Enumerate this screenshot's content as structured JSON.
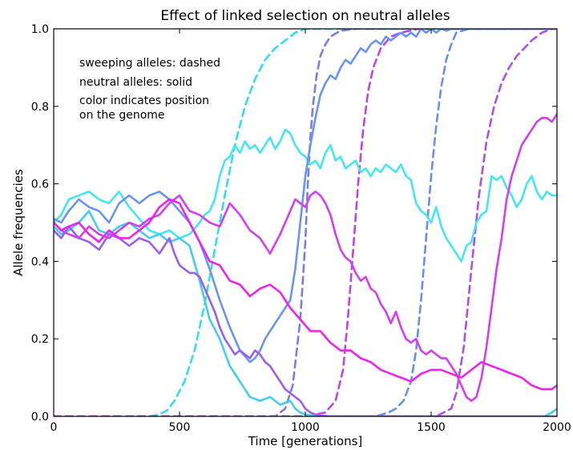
{
  "chart_data": {
    "type": "line",
    "title": "Effect of linked selection on neutral alleles",
    "xlabel": "Time [generations]",
    "ylabel": "Allele frequencies",
    "xlim": [
      0,
      2000
    ],
    "ylim": [
      0,
      1.0
    ],
    "xticks": [
      "0",
      "500",
      "1000",
      "1500",
      "2000"
    ],
    "yticks": [
      "0.0",
      "0.2",
      "0.4",
      "0.6",
      "0.8",
      "1.0"
    ],
    "grid": false,
    "annotations": [
      "sweeping alleles: dashed",
      "neutral alleles: solid",
      "color indicates position",
      "on the genome"
    ],
    "series": [
      {
        "style": "dashed",
        "color": "#33ddee",
        "x": [
          0,
          380,
          420,
          450,
          480,
          520,
          560,
          600,
          640,
          680,
          720,
          760,
          800,
          840,
          880,
          920,
          960,
          1000,
          1100,
          2000
        ],
        "y": [
          0,
          0,
          0.005,
          0.015,
          0.04,
          0.09,
          0.17,
          0.29,
          0.43,
          0.57,
          0.7,
          0.8,
          0.87,
          0.92,
          0.95,
          0.97,
          0.99,
          1.0,
          1.0,
          1.0
        ]
      },
      {
        "style": "dashed",
        "color": "#6a8df0",
        "x": [
          0,
          1280,
          1330,
          1360,
          1390,
          1420,
          1440,
          1460,
          1480,
          1500,
          1520,
          1540,
          1560,
          1580,
          1600,
          1650,
          2000
        ],
        "y": [
          0,
          0,
          0.01,
          0.02,
          0.04,
          0.09,
          0.17,
          0.3,
          0.46,
          0.62,
          0.75,
          0.85,
          0.92,
          0.96,
          0.99,
          1.0,
          1.0
        ]
      },
      {
        "style": "dashed",
        "color": "#7a7de8",
        "x": [
          0,
          880,
          920,
          950,
          980,
          1000,
          1010,
          1020,
          1030,
          1045,
          1060,
          1080,
          1100,
          1140,
          1200,
          2000
        ],
        "y": [
          0,
          0,
          0.02,
          0.08,
          0.25,
          0.45,
          0.6,
          0.72,
          0.8,
          0.88,
          0.93,
          0.96,
          0.98,
          0.995,
          1.0,
          1.0
        ]
      },
      {
        "style": "dashed",
        "color": "#bb44f0",
        "x": [
          0,
          1000,
          1080,
          1120,
          1150,
          1170,
          1190,
          1210,
          1230,
          1250,
          1270,
          1300,
          1340,
          1380,
          1450,
          2000
        ],
        "y": [
          0,
          0,
          0.01,
          0.04,
          0.12,
          0.26,
          0.43,
          0.6,
          0.74,
          0.84,
          0.9,
          0.95,
          0.98,
          0.99,
          1.0,
          1.0
        ]
      },
      {
        "style": "dashed",
        "color": "#b14df0",
        "x": [
          0,
          1520,
          1580,
          1600,
          1630,
          1660,
          1690,
          1720,
          1750,
          1780,
          1810,
          1840,
          1870,
          1900,
          1940,
          1980,
          2000
        ],
        "y": [
          0,
          0,
          0.02,
          0.06,
          0.18,
          0.38,
          0.57,
          0.71,
          0.8,
          0.86,
          0.9,
          0.93,
          0.95,
          0.97,
          0.99,
          1.0,
          1.0
        ]
      },
      {
        "style": "solid",
        "color": "#44e6f2",
        "x": [
          0,
          30,
          60,
          100,
          140,
          180,
          220,
          260,
          300,
          340,
          380,
          420,
          460,
          500,
          540,
          580,
          600,
          620,
          640,
          660,
          680,
          700,
          720,
          740,
          760,
          780,
          800,
          820,
          840,
          860,
          880,
          900,
          920,
          940,
          960,
          980,
          1000,
          1020,
          1040,
          1060,
          1080,
          1100,
          1120,
          1140,
          1160,
          1180,
          1200,
          1220,
          1240,
          1260,
          1280,
          1300,
          1320,
          1340,
          1360,
          1380,
          1400,
          1420,
          1440,
          1460,
          1480,
          1500,
          1520,
          1540,
          1560,
          1580,
          1600,
          1620,
          1640,
          1660,
          1680,
          1700,
          1720,
          1740,
          1760,
          1780,
          1800,
          1820,
          1840,
          1860,
          1880,
          1900,
          1920,
          1940,
          1960,
          1980,
          2000
        ],
        "y": [
          0.5,
          0.52,
          0.56,
          0.57,
          0.58,
          0.56,
          0.55,
          0.58,
          0.54,
          0.51,
          0.48,
          0.47,
          0.48,
          0.46,
          0.47,
          0.5,
          0.52,
          0.53,
          0.56,
          0.62,
          0.66,
          0.67,
          0.7,
          0.68,
          0.71,
          0.69,
          0.7,
          0.68,
          0.7,
          0.72,
          0.69,
          0.71,
          0.74,
          0.73,
          0.7,
          0.68,
          0.67,
          0.65,
          0.66,
          0.64,
          0.68,
          0.7,
          0.66,
          0.67,
          0.64,
          0.65,
          0.66,
          0.63,
          0.64,
          0.62,
          0.64,
          0.63,
          0.65,
          0.64,
          0.63,
          0.65,
          0.62,
          0.61,
          0.55,
          0.53,
          0.52,
          0.5,
          0.54,
          0.49,
          0.46,
          0.44,
          0.42,
          0.4,
          0.44,
          0.45,
          0.5,
          0.52,
          0.53,
          0.62,
          0.61,
          0.62,
          0.59,
          0.57,
          0.54,
          0.56,
          0.6,
          0.62,
          0.58,
          0.56,
          0.58,
          0.57,
          0.57
        ]
      },
      {
        "style": "solid",
        "color": "#44ccee",
        "x": [
          0,
          30,
          60,
          100,
          140,
          180,
          220,
          260,
          300,
          340,
          380,
          420,
          460,
          500,
          540,
          580,
          620,
          660,
          700,
          740,
          780,
          820,
          860,
          900,
          940,
          960,
          980,
          1000,
          1020,
          1040,
          1060,
          1080,
          1100,
          1200,
          1400,
          1600,
          1800,
          1950,
          1980,
          2000
        ],
        "y": [
          0.49,
          0.47,
          0.48,
          0.5,
          0.53,
          0.48,
          0.47,
          0.49,
          0.5,
          0.48,
          0.46,
          0.47,
          0.45,
          0.46,
          0.44,
          0.35,
          0.25,
          0.2,
          0.13,
          0.09,
          0.05,
          0.04,
          0.05,
          0.03,
          0.04,
          0.02,
          0.01,
          0.005,
          0.003,
          0.002,
          0.001,
          0,
          0,
          0,
          0,
          0,
          0,
          0,
          0.01,
          0.02
        ]
      },
      {
        "style": "solid",
        "color": "#6a94f4",
        "x": [
          0,
          30,
          60,
          100,
          140,
          180,
          220,
          260,
          300,
          340,
          380,
          420,
          460,
          500,
          540,
          580,
          620,
          660,
          700,
          740,
          780,
          800,
          820,
          840,
          860,
          880,
          900,
          920,
          940,
          960,
          980,
          1000,
          1020,
          1040,
          1060,
          1080,
          1100,
          1120,
          1140,
          1160,
          1180,
          1200,
          1220,
          1240,
          1260,
          1280,
          1300,
          1320,
          1340,
          1360,
          1380,
          1400,
          1420,
          1440,
          1460,
          1480,
          1500,
          1520,
          1540,
          1560,
          1580,
          1600,
          1650,
          2000
        ],
        "y": [
          0.51,
          0.5,
          0.53,
          0.56,
          0.54,
          0.53,
          0.5,
          0.55,
          0.57,
          0.55,
          0.57,
          0.58,
          0.56,
          0.53,
          0.5,
          0.45,
          0.38,
          0.3,
          0.23,
          0.17,
          0.14,
          0.15,
          0.17,
          0.2,
          0.22,
          0.24,
          0.26,
          0.28,
          0.3,
          0.38,
          0.5,
          0.62,
          0.7,
          0.77,
          0.83,
          0.86,
          0.88,
          0.87,
          0.9,
          0.92,
          0.91,
          0.93,
          0.95,
          0.94,
          0.96,
          0.97,
          0.96,
          0.98,
          0.97,
          0.98,
          0.99,
          0.98,
          0.99,
          0.98,
          1.0,
          0.99,
          1.0,
          0.99,
          1.0,
          0.995,
          1.0,
          1.0,
          1.0,
          1.0
        ]
      },
      {
        "style": "solid",
        "color": "#9a5ef0",
        "x": [
          0,
          30,
          60,
          100,
          140,
          180,
          220,
          260,
          300,
          340,
          380,
          420,
          440,
          460,
          480,
          500,
          520,
          540,
          560,
          580,
          600,
          620,
          640,
          660,
          680,
          700,
          720,
          740,
          760,
          780,
          800,
          820,
          840,
          860,
          880,
          900,
          920,
          940,
          960,
          980,
          1000,
          1020,
          1040,
          1060,
          1100,
          1200,
          2000
        ],
        "y": [
          0.48,
          0.46,
          0.49,
          0.46,
          0.45,
          0.43,
          0.47,
          0.46,
          0.44,
          0.46,
          0.45,
          0.42,
          0.44,
          0.46,
          0.42,
          0.39,
          0.38,
          0.37,
          0.37,
          0.36,
          0.33,
          0.3,
          0.27,
          0.23,
          0.2,
          0.18,
          0.16,
          0.17,
          0.16,
          0.15,
          0.17,
          0.16,
          0.14,
          0.13,
          0.11,
          0.09,
          0.07,
          0.06,
          0.05,
          0.04,
          0.02,
          0.01,
          0.005,
          0.002,
          0.0,
          0.0,
          0.0
        ]
      },
      {
        "style": "solid",
        "color": "#d23ef0",
        "x": [
          0,
          30,
          60,
          100,
          140,
          180,
          220,
          260,
          300,
          340,
          380,
          420,
          460,
          500,
          540,
          580,
          620,
          660,
          700,
          740,
          780,
          820,
          860,
          900,
          940,
          960,
          980,
          1000,
          1020,
          1040,
          1060,
          1080,
          1100,
          1120,
          1140,
          1160,
          1180,
          1200,
          1220,
          1240,
          1260,
          1280,
          1300,
          1320,
          1340,
          1360,
          1380,
          1400,
          1420,
          1440,
          1460,
          1480,
          1500,
          1520,
          1540,
          1560,
          1580,
          1600,
          1620,
          1640,
          1660,
          1680,
          1700,
          1720,
          1740,
          1760,
          1780,
          1800,
          1820,
          1840,
          1860,
          1880,
          1900,
          1920,
          1940,
          1960,
          1980,
          2000
        ],
        "y": [
          0.5,
          0.48,
          0.47,
          0.46,
          0.49,
          0.47,
          0.46,
          0.48,
          0.5,
          0.49,
          0.51,
          0.52,
          0.55,
          0.57,
          0.53,
          0.52,
          0.5,
          0.49,
          0.55,
          0.52,
          0.48,
          0.46,
          0.42,
          0.47,
          0.53,
          0.56,
          0.55,
          0.54,
          0.57,
          0.58,
          0.57,
          0.55,
          0.52,
          0.47,
          0.43,
          0.41,
          0.4,
          0.37,
          0.35,
          0.36,
          0.33,
          0.32,
          0.29,
          0.27,
          0.24,
          0.27,
          0.23,
          0.2,
          0.19,
          0.2,
          0.17,
          0.16,
          0.17,
          0.16,
          0.15,
          0.15,
          0.13,
          0.11,
          0.08,
          0.05,
          0.04,
          0.05,
          0.1,
          0.18,
          0.28,
          0.38,
          0.46,
          0.56,
          0.62,
          0.66,
          0.7,
          0.72,
          0.74,
          0.76,
          0.77,
          0.77,
          0.76,
          0.78
        ]
      },
      {
        "style": "solid",
        "color": "#ee22ee",
        "x": [
          0,
          30,
          60,
          100,
          140,
          180,
          220,
          260,
          300,
          340,
          380,
          420,
          460,
          500,
          540,
          580,
          620,
          660,
          700,
          740,
          780,
          820,
          860,
          900,
          940,
          980,
          1020,
          1060,
          1100,
          1140,
          1180,
          1220,
          1260,
          1300,
          1340,
          1380,
          1420,
          1460,
          1500,
          1540,
          1580,
          1620,
          1660,
          1700,
          1740,
          1780,
          1820,
          1860,
          1900,
          1940,
          1980,
          2000
        ],
        "y": [
          0.5,
          0.48,
          0.49,
          0.5,
          0.47,
          0.45,
          0.48,
          0.46,
          0.46,
          0.48,
          0.5,
          0.54,
          0.56,
          0.55,
          0.5,
          0.45,
          0.4,
          0.39,
          0.35,
          0.34,
          0.31,
          0.33,
          0.34,
          0.32,
          0.28,
          0.25,
          0.22,
          0.22,
          0.19,
          0.17,
          0.17,
          0.15,
          0.14,
          0.12,
          0.11,
          0.1,
          0.09,
          0.11,
          0.12,
          0.12,
          0.11,
          0.1,
          0.12,
          0.14,
          0.13,
          0.12,
          0.11,
          0.1,
          0.08,
          0.07,
          0.07,
          0.08
        ]
      }
    ]
  }
}
